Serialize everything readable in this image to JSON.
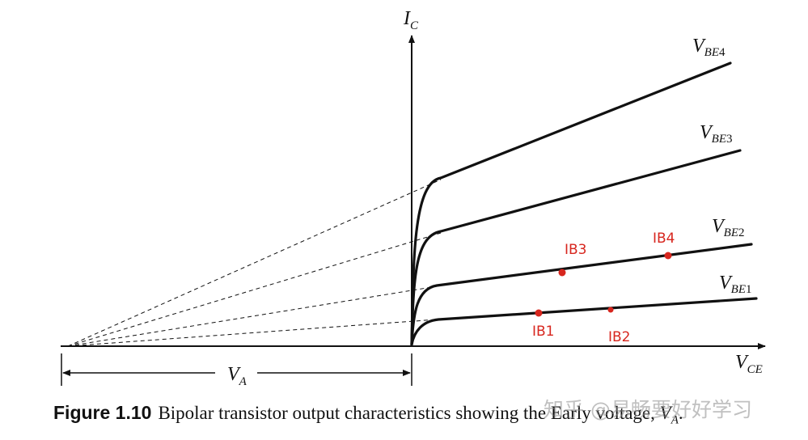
{
  "axes": {
    "y_label": "I",
    "y_sub": "C",
    "x_label": "V",
    "x_sub": "CE",
    "va_label": "V",
    "va_sub": "A"
  },
  "curves": [
    {
      "label": "V",
      "sub": "BE",
      "num": "1"
    },
    {
      "label": "V",
      "sub": "BE",
      "num": "2"
    },
    {
      "label": "V",
      "sub": "BE",
      "num": "3"
    },
    {
      "label": "V",
      "sub": "BE",
      "num": "4"
    }
  ],
  "points": [
    {
      "label": "IB1",
      "color": "#d7261e"
    },
    {
      "label": "IB2",
      "color": "#d7261e"
    },
    {
      "label": "IB3",
      "color": "#d7261e"
    },
    {
      "label": "IB4",
      "color": "#d7261e"
    }
  ],
  "caption": {
    "figure": "Figure 1.10",
    "text": "Bipolar transistor output characteristics showing the Early voltage,",
    "va": "V",
    "va_sub": "A",
    "end": "."
  },
  "watermark": "知乎 @易畅要好好学习"
}
